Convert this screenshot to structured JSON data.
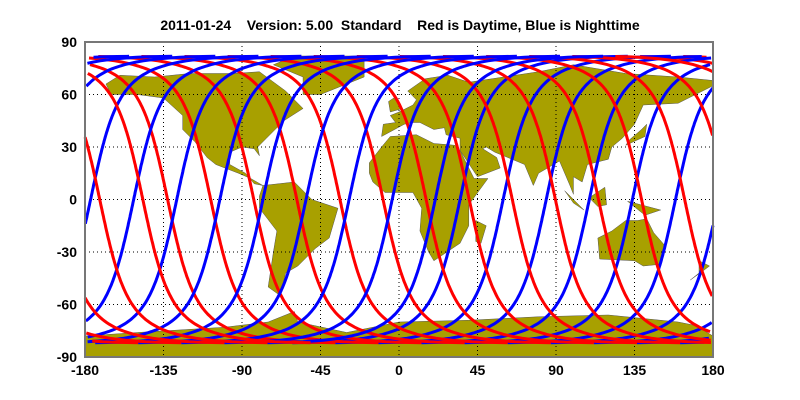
{
  "title": "2011-01-24    Version: 5.00  Standard    Red is Daytime, Blue is Nighttime",
  "map": {
    "projection": "equirectangular",
    "xlim": [
      -180,
      180
    ],
    "ylim": [
      -90,
      90
    ],
    "x_ticks": [
      "-180",
      "-135",
      "-90",
      "-45",
      "0",
      "45",
      "90",
      "135",
      "180"
    ],
    "y_ticks": [
      "90",
      "60",
      "30",
      "0",
      "-30",
      "-60",
      "-90"
    ],
    "grid": true,
    "land_color": "#A8A000",
    "day_color": "#FF0000",
    "night_color": "#0000FF",
    "day_label": "Daytime",
    "night_label": "Nighttime"
  }
}
